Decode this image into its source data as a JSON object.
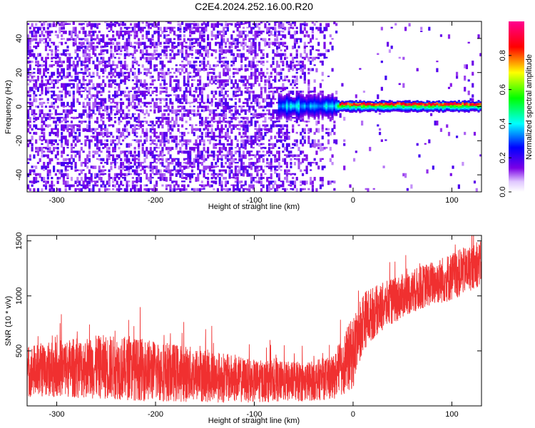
{
  "title": "C2E4.2024.252.16.00.R20",
  "chart_data": [
    {
      "type": "heatmap",
      "title": "C2E4.2024.252.16.00.R20",
      "xlabel": "Height of straight line (km)",
      "ylabel": "Frequency (Hz)",
      "xlim": [
        -330,
        130
      ],
      "ylim": [
        -50,
        50
      ],
      "xticks": [
        -300,
        -200,
        -100,
        0,
        100
      ],
      "yticks": [
        -40,
        -20,
        0,
        20,
        40
      ],
      "xtick_labels": [
        "-300",
        "-200",
        "-100",
        "0",
        "100"
      ],
      "ytick_labels": [
        "-40",
        "-20",
        "0",
        "20",
        "40"
      ],
      "colorbar": {
        "label": "Normalized spectral amplitude",
        "range": [
          0,
          1
        ],
        "ticks": [
          0.0,
          0.2,
          0.4,
          0.6,
          0.8
        ],
        "tick_labels": [
          "0.0",
          "0.2",
          "0.4",
          "0.6",
          "0.8"
        ],
        "colormap": [
          "#ffffff",
          "#7a00e6",
          "#0000ff",
          "#00ffff",
          "#00ff00",
          "#ffff00",
          "#ff0000",
          "#ff0090"
        ]
      },
      "regions": [
        {
          "x_from": -330,
          "x_to": -75,
          "description_value": "noise",
          "amplitude": 0.15
        },
        {
          "x_from": -75,
          "x_to": -15,
          "signal_freq": 0,
          "amplitude": 0.35
        },
        {
          "x_from": -15,
          "x_to": 130,
          "signal_freq": 1.5,
          "amplitude": 0.55,
          "peak": 0.95
        }
      ]
    },
    {
      "type": "line",
      "xlabel": "Height of straight line (km)",
      "ylabel": "SNR (10 * v/v)",
      "xlim": [
        -330,
        130
      ],
      "ylim": [
        0,
        1550
      ],
      "xticks": [
        -300,
        -200,
        -100,
        0,
        100
      ],
      "yticks": [
        500,
        1000,
        1500
      ],
      "xtick_labels": [
        "-300",
        "-200",
        "-100",
        "0",
        "100"
      ],
      "ytick_labels": [
        "500",
        "1000",
        "1500"
      ],
      "color": "#f03030",
      "envelope": {
        "x": [
          -330,
          -300,
          -250,
          -200,
          -150,
          -100,
          -50,
          -20,
          -10,
          0,
          10,
          25,
          50,
          75,
          100,
          130
        ],
        "low": [
          80,
          80,
          60,
          40,
          30,
          30,
          40,
          60,
          100,
          150,
          500,
          650,
          800,
          900,
          950,
          1100
        ],
        "high": [
          550,
          600,
          650,
          600,
          520,
          420,
          400,
          450,
          650,
          820,
          1050,
          1100,
          1200,
          1300,
          1400,
          1500
        ]
      }
    }
  ]
}
